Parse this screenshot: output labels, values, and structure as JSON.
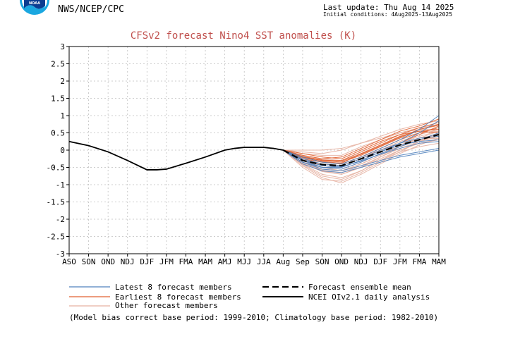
{
  "header": {
    "logo_text": "NOAA",
    "agency": "NWS/NCEP/CPC",
    "last_update": "Last update: Thu Aug 14 2025",
    "initial_conditions": "Initial conditions: 4Aug2025-13Aug2025"
  },
  "colors": {
    "title": "#c0504d",
    "latest": "#4f81bd",
    "earliest": "#e06030",
    "other": "#e6b0a0",
    "analysis": "#000000",
    "mean": "#000000",
    "grid": "#bfbfbf",
    "logo": "#1aa7e0"
  },
  "chart_data": {
    "type": "line",
    "title": "CFSv2 forecast Nino4 SST anomalies (K)",
    "xlabel": "",
    "ylabel": "",
    "categories": [
      "ASO",
      "SON",
      "OND",
      "NDJ",
      "DJF",
      "JFM",
      "FMA",
      "MAM",
      "AMJ",
      "MJJ",
      "JJA",
      "Aug",
      "Sep",
      "SON",
      "OND",
      "NDJ",
      "DJF",
      "JFM",
      "FMA",
      "MAM"
    ],
    "ylim": [
      -3,
      3
    ],
    "yticks": [
      "3",
      "2.5",
      "2",
      "1.5",
      "1",
      "0.5",
      "0",
      "-0.5",
      "-1",
      "-1.5",
      "-2",
      "-2.5",
      "-3"
    ],
    "grid": true,
    "analysis": {
      "name": "NCEI OIv2.1 daily analysis",
      "x": [
        0,
        1,
        2,
        3,
        4,
        4.5,
        5,
        6,
        7,
        8,
        8.5,
        9,
        9.5,
        10,
        10.5,
        11
      ],
      "y": [
        0.25,
        0.13,
        -0.05,
        -0.3,
        -0.57,
        -0.57,
        -0.55,
        -0.38,
        -0.2,
        0.0,
        0.05,
        0.08,
        0.08,
        0.08,
        0.05,
        0.0
      ]
    },
    "ensemble_mean": {
      "name": "Forecast ensemble mean",
      "x": [
        11,
        12,
        13,
        14,
        15,
        16,
        17,
        18,
        19
      ],
      "y": [
        0.0,
        -0.3,
        -0.42,
        -0.45,
        -0.25,
        -0.05,
        0.15,
        0.3,
        0.45
      ]
    },
    "member_groups": [
      {
        "name": "Latest 8 forecast members",
        "x": [
          11,
          12,
          13,
          14,
          15,
          16,
          17,
          18,
          19
        ],
        "series": [
          [
            0,
            -0.35,
            -0.55,
            -0.6,
            -0.45,
            -0.3,
            -0.15,
            -0.05,
            0.05
          ],
          [
            0,
            -0.4,
            -0.6,
            -0.65,
            -0.5,
            -0.35,
            -0.2,
            -0.1,
            0.0
          ],
          [
            0,
            -0.3,
            -0.5,
            -0.55,
            -0.35,
            -0.1,
            0.1,
            0.3,
            0.5
          ],
          [
            0,
            -0.25,
            -0.4,
            -0.45,
            -0.25,
            0.0,
            0.2,
            0.35,
            0.4
          ],
          [
            0,
            -0.3,
            -0.45,
            -0.5,
            -0.3,
            -0.05,
            0.15,
            0.25,
            0.3
          ],
          [
            0,
            -0.2,
            -0.35,
            -0.4,
            -0.2,
            0.05,
            0.3,
            0.6,
            1.0
          ],
          [
            0,
            -0.35,
            -0.5,
            -0.5,
            -0.3,
            -0.05,
            0.2,
            0.5,
            0.85
          ],
          [
            0,
            -0.28,
            -0.45,
            -0.48,
            -0.32,
            -0.12,
            0.05,
            0.2,
            0.25
          ]
        ]
      },
      {
        "name": "Earliest 8 forecast members",
        "x": [
          11,
          12,
          13,
          14,
          15,
          16,
          17,
          18,
          19
        ],
        "series": [
          [
            0,
            -0.2,
            -0.3,
            -0.3,
            -0.05,
            0.2,
            0.45,
            0.65,
            0.8
          ],
          [
            0,
            -0.15,
            -0.25,
            -0.2,
            0.05,
            0.3,
            0.55,
            0.7,
            0.9
          ],
          [
            0,
            -0.25,
            -0.35,
            -0.4,
            -0.2,
            0.05,
            0.3,
            0.5,
            0.65
          ],
          [
            0,
            -0.3,
            -0.4,
            -0.45,
            -0.25,
            0.0,
            0.2,
            0.45,
            0.7
          ],
          [
            0,
            -0.1,
            -0.2,
            -0.25,
            0.0,
            0.25,
            0.45,
            0.55,
            0.6
          ],
          [
            0,
            -0.2,
            -0.3,
            -0.35,
            -0.15,
            0.1,
            0.35,
            0.6,
            0.75
          ],
          [
            0,
            -0.22,
            -0.33,
            -0.38,
            -0.1,
            0.15,
            0.4,
            0.55,
            0.5
          ],
          [
            0,
            -0.18,
            -0.28,
            -0.32,
            -0.12,
            0.12,
            0.38,
            0.6,
            0.72
          ]
        ]
      },
      {
        "name": "Other forecast members",
        "x": [
          11,
          12,
          13,
          14,
          15,
          16,
          17,
          18,
          19
        ],
        "series": [
          [
            0,
            -0.4,
            -0.7,
            -0.8,
            -0.6,
            -0.3,
            0.0,
            0.2,
            0.3
          ],
          [
            0,
            -0.45,
            -0.8,
            -0.95,
            -0.7,
            -0.4,
            -0.1,
            0.15,
            0.35
          ],
          [
            0,
            -0.5,
            -0.85,
            -0.9,
            -0.65,
            -0.35,
            -0.05,
            0.25,
            0.5
          ],
          [
            0,
            -0.35,
            -0.6,
            -0.7,
            -0.5,
            -0.2,
            0.1,
            0.35,
            0.55
          ],
          [
            0,
            -0.3,
            -0.55,
            -0.6,
            -0.4,
            -0.15,
            0.1,
            0.3,
            0.4
          ],
          [
            0,
            0.0,
            0.0,
            0.05,
            0.2,
            0.35,
            0.5,
            0.6,
            0.6
          ],
          [
            0,
            -0.05,
            -0.1,
            0.0,
            0.2,
            0.4,
            0.6,
            0.75,
            0.85
          ],
          [
            0,
            -0.25,
            -0.45,
            -0.5,
            -0.3,
            -0.05,
            0.2,
            0.4,
            0.55
          ],
          [
            0,
            -0.3,
            -0.5,
            -0.55,
            -0.35,
            -0.1,
            0.15,
            0.35,
            0.45
          ],
          [
            0,
            -0.38,
            -0.62,
            -0.7,
            -0.5,
            -0.25,
            0.0,
            0.2,
            0.3
          ],
          [
            0,
            -0.2,
            -0.35,
            -0.4,
            -0.2,
            0.0,
            0.25,
            0.45,
            0.6
          ],
          [
            0,
            -0.15,
            -0.25,
            -0.3,
            -0.1,
            0.15,
            0.35,
            0.5,
            0.55
          ],
          [
            0,
            -0.42,
            -0.75,
            -0.85,
            -0.6,
            -0.3,
            -0.05,
            0.1,
            0.2
          ],
          [
            0,
            -0.1,
            -0.15,
            -0.15,
            0.1,
            0.3,
            0.5,
            0.65,
            0.75
          ],
          [
            0,
            -0.28,
            -0.5,
            -0.6,
            -0.4,
            -0.15,
            0.1,
            0.3,
            0.35
          ],
          [
            0,
            -0.35,
            -0.58,
            -0.65,
            -0.45,
            -0.2,
            0.05,
            0.25,
            0.4
          ]
        ]
      }
    ]
  },
  "legend": {
    "latest": "Latest 8 forecast members",
    "earliest": "Earliest 8 forecast members",
    "other": "Other forecast members",
    "mean": "Forecast ensemble mean",
    "analysis": "NCEI OIv2.1 daily analysis"
  },
  "footnote": "(Model bias correct base period: 1999-2010; Climatology base period: 1982-2010)"
}
